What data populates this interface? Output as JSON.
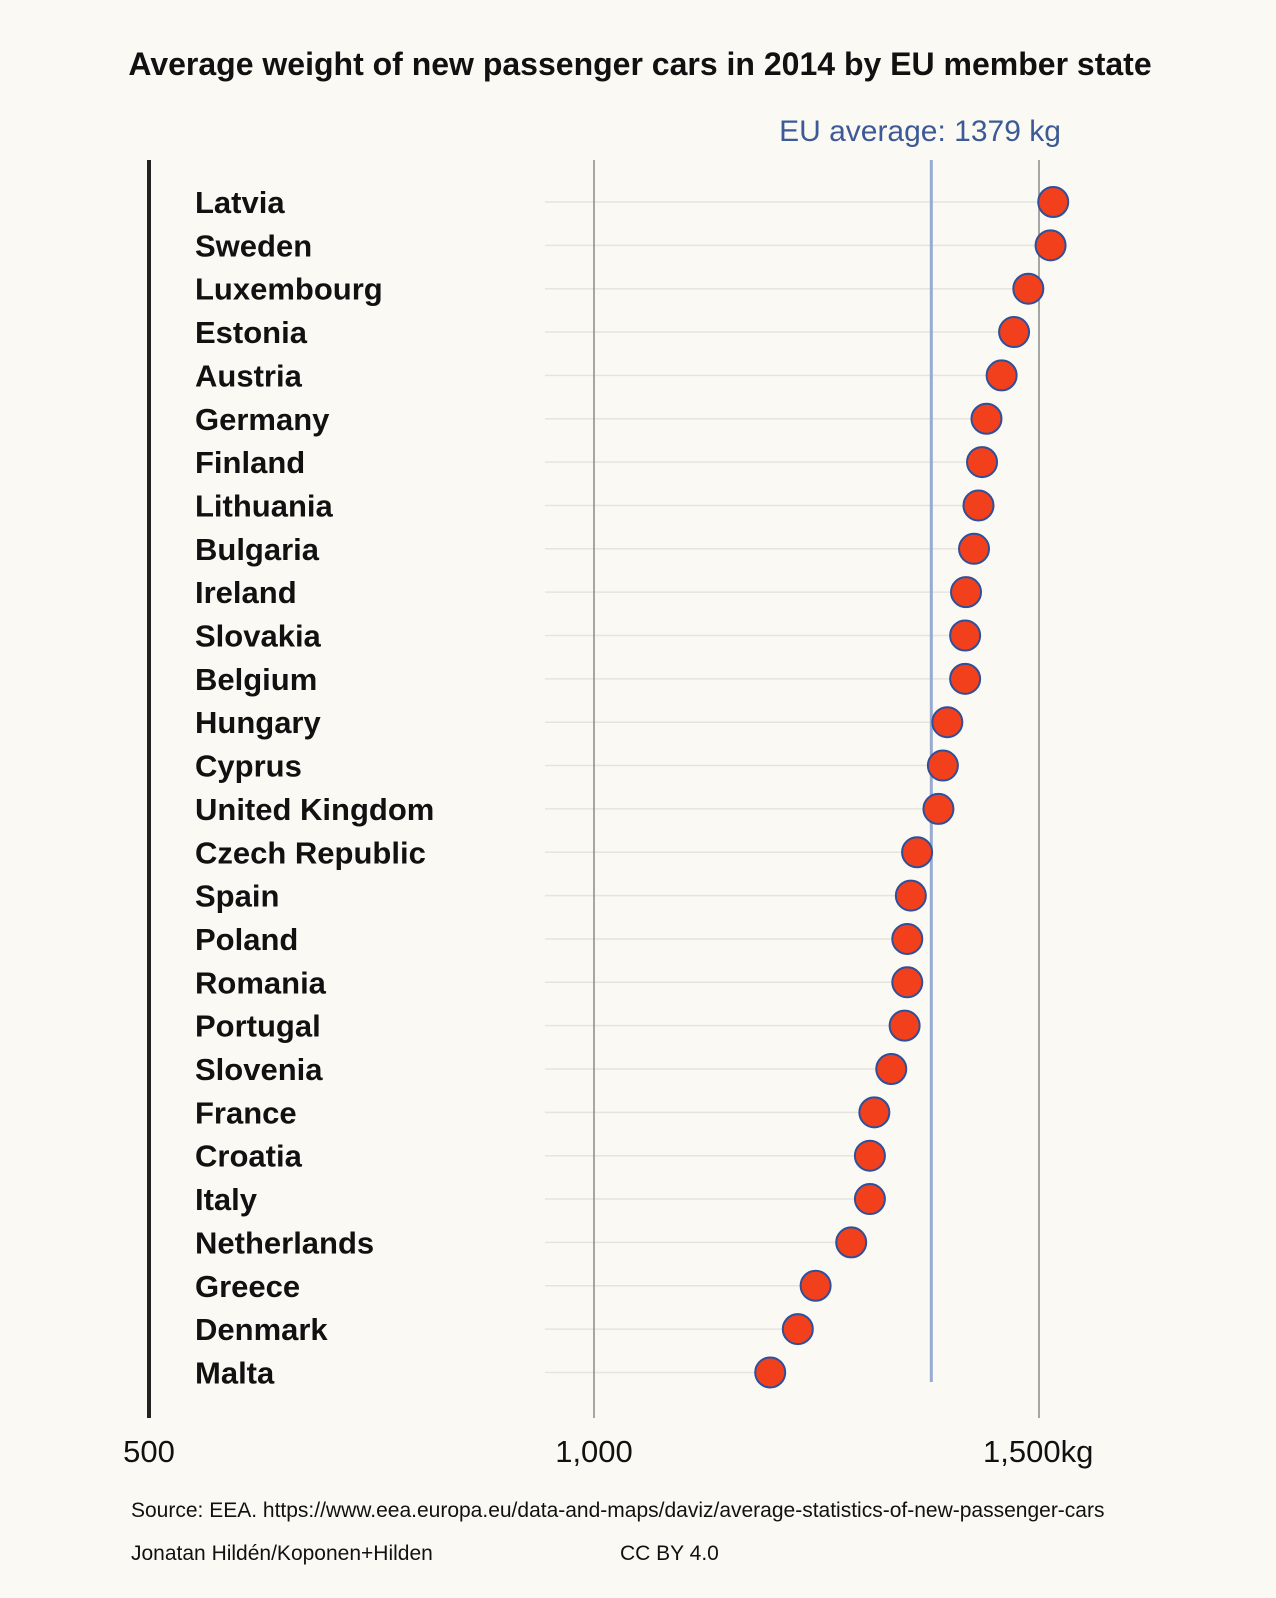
{
  "chart_data": {
    "type": "scatter",
    "title": "Average weight of new passenger cars in 2014 by EU member state",
    "reference_line": {
      "label": "EU average: 1379 kg",
      "value": 1379
    },
    "xlim": [
      500,
      1500
    ],
    "x_ticks": [
      {
        "value": 500,
        "label": "500"
      },
      {
        "value": 1000,
        "label": "1,000"
      },
      {
        "value": 1500,
        "label": "1,500kg"
      }
    ],
    "categories": [
      "Latvia",
      "Sweden",
      "Luxembourg",
      "Estonia",
      "Austria",
      "Germany",
      "Finland",
      "Lithuania",
      "Bulgaria",
      "Ireland",
      "Slovakia",
      "Belgium",
      "Hungary",
      "Cyprus",
      "United Kingdom",
      "Czech Republic",
      "Spain",
      "Poland",
      "Romania",
      "Portugal",
      "Slovenia",
      "France",
      "Croatia",
      "Italy",
      "Netherlands",
      "Greece",
      "Denmark",
      "Malta"
    ],
    "values": [
      1516,
      1513,
      1488,
      1472,
      1458,
      1441,
      1436,
      1432,
      1427,
      1418,
      1417,
      1417,
      1397,
      1392,
      1387,
      1363,
      1356,
      1352,
      1352,
      1349,
      1334,
      1315,
      1310,
      1310,
      1289,
      1249,
      1229,
      1198
    ],
    "colors": {
      "point": "#f2401c",
      "point_stroke": "#2f4f9a",
      "avg_line": "#97abd2",
      "axis": "#222222",
      "grid": "#8a8a8a",
      "row_line": "#e6e4de"
    }
  },
  "footer": {
    "source": "Source: EEA. https://www.eea.europa.eu/data-and-maps/daviz/average-statistics-of-new-passenger-cars",
    "author": "Jonatan Hildén/Koponen+Hilden",
    "license": "CC BY 4.0"
  }
}
